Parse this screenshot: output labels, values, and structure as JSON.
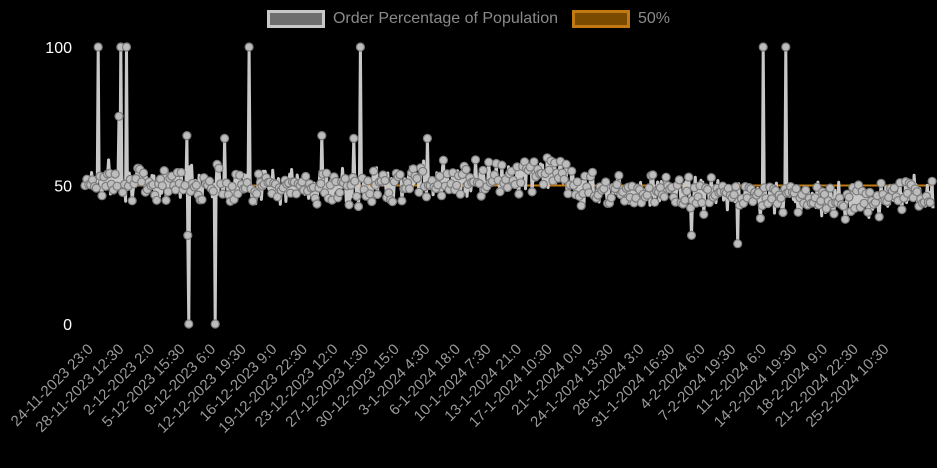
{
  "chart_data": {
    "type": "line",
    "legend": {
      "position": "top-center",
      "items": [
        {
          "label": "Order Percentage of Population",
          "color": "#c8c8c8"
        },
        {
          "label": "50%",
          "color": "#c27a10"
        }
      ]
    },
    "y_ticks": [
      "100",
      "50",
      "0"
    ],
    "ylim": [
      0,
      100
    ],
    "grid": false,
    "x_tick_labels": [
      "24-11-2023 23:0",
      "28-11-2023 12:30",
      "2-12-2023 2:0",
      "5-12-2023 15:30",
      "9-12-2023 6:0",
      "12-12-2023 19:30",
      "16-12-2023 9:0",
      "19-12-2023 22:30",
      "23-12-2023 12:0",
      "27-12-2023 1:30",
      "30-12-2023 15:0",
      "3-1-2024 4:30",
      "6-1-2024 18:0",
      "10-1-2024 7:30",
      "13-1-2024 21:0",
      "17-1-2024 10:30",
      "21-1-2024 0:0",
      "24-1-2024 13:30",
      "28-1-2024 3:0",
      "31-1-2024 16:30",
      "4-2-2024 6:0",
      "7-2-2024 19:30",
      "11-2-2024 6:0",
      "14-2-2024 19:30",
      "18-2-2024 9:0",
      "21-2-2024 22:30",
      "25-2-2024 10:30"
    ],
    "series": [
      {
        "name": "Order Percentage of Population",
        "color": "#c8c8c8",
        "trend": [
          [
            0,
            52
          ],
          [
            0.1,
            51
          ],
          [
            0.2,
            50
          ],
          [
            0.3,
            49
          ],
          [
            0.4,
            52
          ],
          [
            0.5,
            53
          ],
          [
            0.55,
            55
          ],
          [
            0.58,
            49
          ],
          [
            0.7,
            48
          ],
          [
            0.8,
            46
          ],
          [
            0.9,
            45
          ],
          [
            1,
            46
          ]
        ],
        "amplitude": 6,
        "outliers": [
          {
            "t": 0.016,
            "value": 100
          },
          {
            "t": 0.042,
            "value": 100
          },
          {
            "t": 0.049,
            "value": 100
          },
          {
            "t": 0.122,
            "value": 0
          },
          {
            "t": 0.153,
            "value": 0
          },
          {
            "t": 0.194,
            "value": 100
          },
          {
            "t": 0.325,
            "value": 100
          },
          {
            "t": 0.8,
            "value": 100
          },
          {
            "t": 0.827,
            "value": 100
          },
          {
            "t": 0.04,
            "value": 75
          },
          {
            "t": 0.12,
            "value": 68
          },
          {
            "t": 0.165,
            "value": 67
          },
          {
            "t": 0.279,
            "value": 68
          },
          {
            "t": 0.317,
            "value": 67
          },
          {
            "t": 0.404,
            "value": 67
          },
          {
            "t": 0.121,
            "value": 32
          },
          {
            "t": 0.77,
            "value": 29
          },
          {
            "t": 0.715,
            "value": 32
          }
        ]
      },
      {
        "name": "50%",
        "color": "#c27a10",
        "value": 50
      }
    ]
  }
}
